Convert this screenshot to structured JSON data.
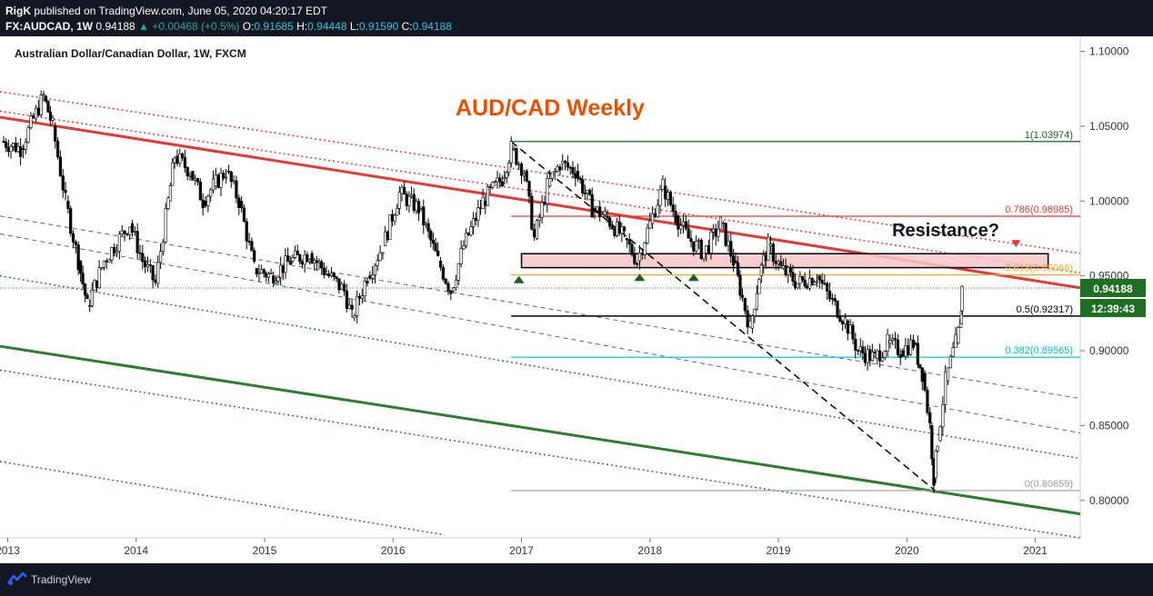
{
  "header": {
    "user": "RigK",
    "published": "published on TradingView.com, June 05, 2020 04:20:17 EDT",
    "symbol": "FX:AUDCAD, 1W",
    "last": "0.94188",
    "change": "+0.00468 (+0.5%)",
    "open_label": "O:",
    "open": "0.91685",
    "high_label": "H:",
    "high": "0.94448",
    "low_label": "L:",
    "low": "0.91590",
    "close_label": "C:",
    "close": "0.94188"
  },
  "footer": {
    "brand": "TradingView",
    "logo_icon": "tradingview-logo-icon"
  },
  "chart_data": {
    "type": "candlestick",
    "instrument": "Australian Dollar/Canadian Dollar, 1W, FXCM",
    "title": "AUD/CAD Weekly",
    "annotation": "Resistance?",
    "ylim": [
      0.775,
      1.11
    ],
    "y_ticks": [
      "1.10000",
      "1.05000",
      "1.00000",
      "0.95000",
      "0.90000",
      "0.85000",
      "0.80000"
    ],
    "y_tick_values": [
      1.1,
      1.05,
      1.0,
      0.95,
      0.9,
      0.85,
      0.8
    ],
    "x_ticks": [
      "2013",
      "2014",
      "2015",
      "2016",
      "2017",
      "2018",
      "2019",
      "2020",
      "2021"
    ],
    "xlim": [
      2012.94,
      2021.35
    ],
    "current_price": "0.94188",
    "countdown": "12:39:43",
    "fib_levels": [
      {
        "label": "1(1.03974)",
        "value": 1.03974,
        "color": "#1b5e20"
      },
      {
        "label": "0.786(0.98985)",
        "value": 0.98985,
        "color": "#e53935"
      },
      {
        "label": "0.618(0.95068)",
        "value": 0.95068,
        "color": "#f9a825"
      },
      {
        "label": "0.5(0.92317)",
        "value": 0.92317,
        "color": "#000000"
      },
      {
        "label": "0.382(0.89565)",
        "value": 0.89565,
        "color": "#00bcd4"
      },
      {
        "label": "0(0.80659)",
        "value": 0.80659,
        "color": "#9e9e9e"
      }
    ],
    "resistance_zone": {
      "x": [
        2017.0,
        2021.1
      ],
      "y": [
        0.9555,
        0.9648
      ]
    },
    "price_path": [
      [
        2012.95,
        1.04
      ],
      [
        2013.1,
        1.035
      ],
      [
        2013.2,
        1.055
      ],
      [
        2013.28,
        1.07
      ],
      [
        2013.35,
        1.05
      ],
      [
        2013.45,
        1.0
      ],
      [
        2013.55,
        0.96
      ],
      [
        2013.62,
        0.93
      ],
      [
        2013.75,
        0.96
      ],
      [
        2013.95,
        0.985
      ],
      [
        2014.05,
        0.96
      ],
      [
        2014.15,
        0.945
      ],
      [
        2014.25,
        1.0
      ],
      [
        2014.3,
        1.03
      ],
      [
        2014.42,
        1.02
      ],
      [
        2014.52,
        1.0
      ],
      [
        2014.6,
        1.01
      ],
      [
        2014.7,
        1.02
      ],
      [
        2014.8,
        1.0
      ],
      [
        2014.92,
        0.955
      ],
      [
        2015.05,
        0.95
      ],
      [
        2015.2,
        0.96
      ],
      [
        2015.35,
        0.965
      ],
      [
        2015.5,
        0.95
      ],
      [
        2015.62,
        0.94
      ],
      [
        2015.68,
        0.922
      ],
      [
        2015.8,
        0.95
      ],
      [
        2015.92,
        0.97
      ],
      [
        2016.05,
        1.005
      ],
      [
        2016.2,
        0.995
      ],
      [
        2016.35,
        0.96
      ],
      [
        2016.45,
        0.94
      ],
      [
        2016.55,
        0.97
      ],
      [
        2016.7,
        1.0
      ],
      [
        2016.85,
        1.015
      ],
      [
        2016.92,
        1.035
      ],
      [
        2017.02,
        1.02
      ],
      [
        2017.1,
        0.975
      ],
      [
        2017.2,
        1.01
      ],
      [
        2017.3,
        1.025
      ],
      [
        2017.42,
        1.02
      ],
      [
        2017.55,
        0.995
      ],
      [
        2017.65,
        0.99
      ],
      [
        2017.8,
        0.975
      ],
      [
        2017.9,
        0.96
      ],
      [
        2018.0,
        0.985
      ],
      [
        2018.1,
        1.01
      ],
      [
        2018.2,
        0.99
      ],
      [
        2018.3,
        0.975
      ],
      [
        2018.42,
        0.965
      ],
      [
        2018.55,
        0.985
      ],
      [
        2018.65,
        0.96
      ],
      [
        2018.72,
        0.935
      ],
      [
        2018.78,
        0.915
      ],
      [
        2018.85,
        0.95
      ],
      [
        2018.92,
        0.97
      ],
      [
        2019.02,
        0.955
      ],
      [
        2019.15,
        0.945
      ],
      [
        2019.3,
        0.95
      ],
      [
        2019.4,
        0.935
      ],
      [
        2019.52,
        0.92
      ],
      [
        2019.62,
        0.9
      ],
      [
        2019.75,
        0.895
      ],
      [
        2019.85,
        0.905
      ],
      [
        2019.95,
        0.9
      ],
      [
        2020.05,
        0.905
      ],
      [
        2020.12,
        0.885
      ],
      [
        2020.18,
        0.85
      ],
      [
        2020.21,
        0.815
      ],
      [
        2020.24,
        0.84
      ],
      [
        2020.3,
        0.88
      ],
      [
        2020.38,
        0.905
      ],
      [
        2020.42,
        0.918
      ],
      [
        2020.43,
        0.942
      ]
    ]
  }
}
